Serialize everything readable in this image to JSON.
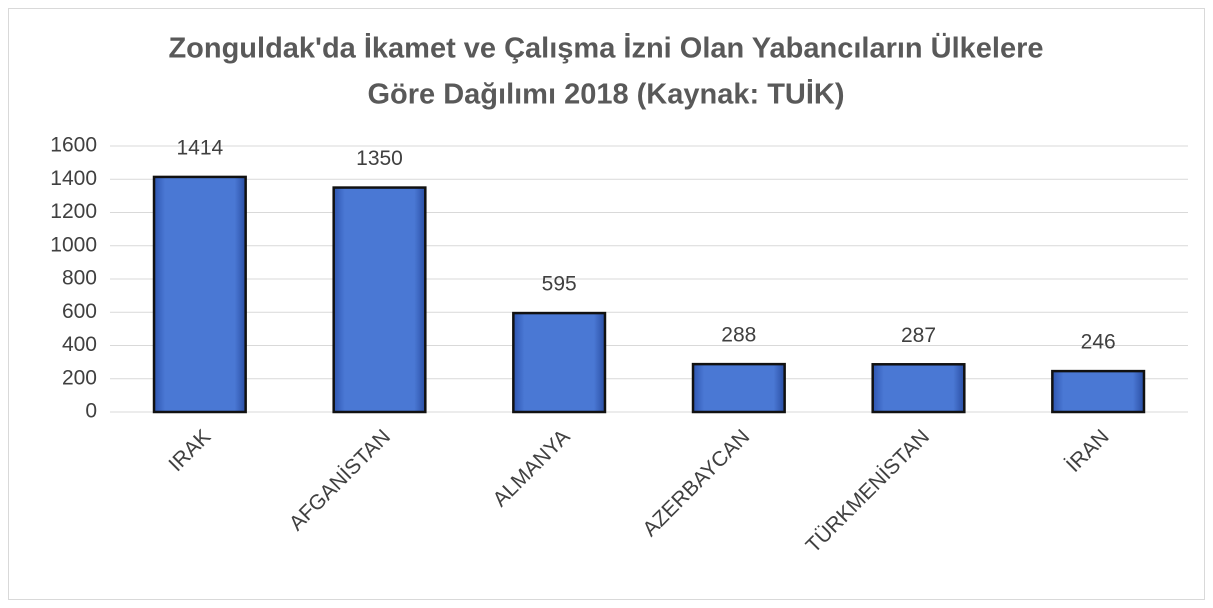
{
  "chart_data": {
    "type": "bar",
    "title": [
      "Zonguldak'da İkamet ve Çalışma İzni Olan Yabancıların Ülkelere",
      "Göre Dağılımı 2018 (Kaynak: TUİK)"
    ],
    "categories": [
      "IRAK",
      "AFGANİSTAN",
      "ALMANYA",
      "AZERBAYCAN",
      "TÜRKMENİSTAN",
      "İRAN"
    ],
    "values": [
      1414,
      1350,
      595,
      288,
      287,
      246
    ],
    "color": "#4472c4",
    "ylim": [
      0,
      1600
    ],
    "yticks": [
      0,
      200,
      400,
      600,
      800,
      1000,
      1200,
      1400,
      1600
    ],
    "grid": true
  }
}
